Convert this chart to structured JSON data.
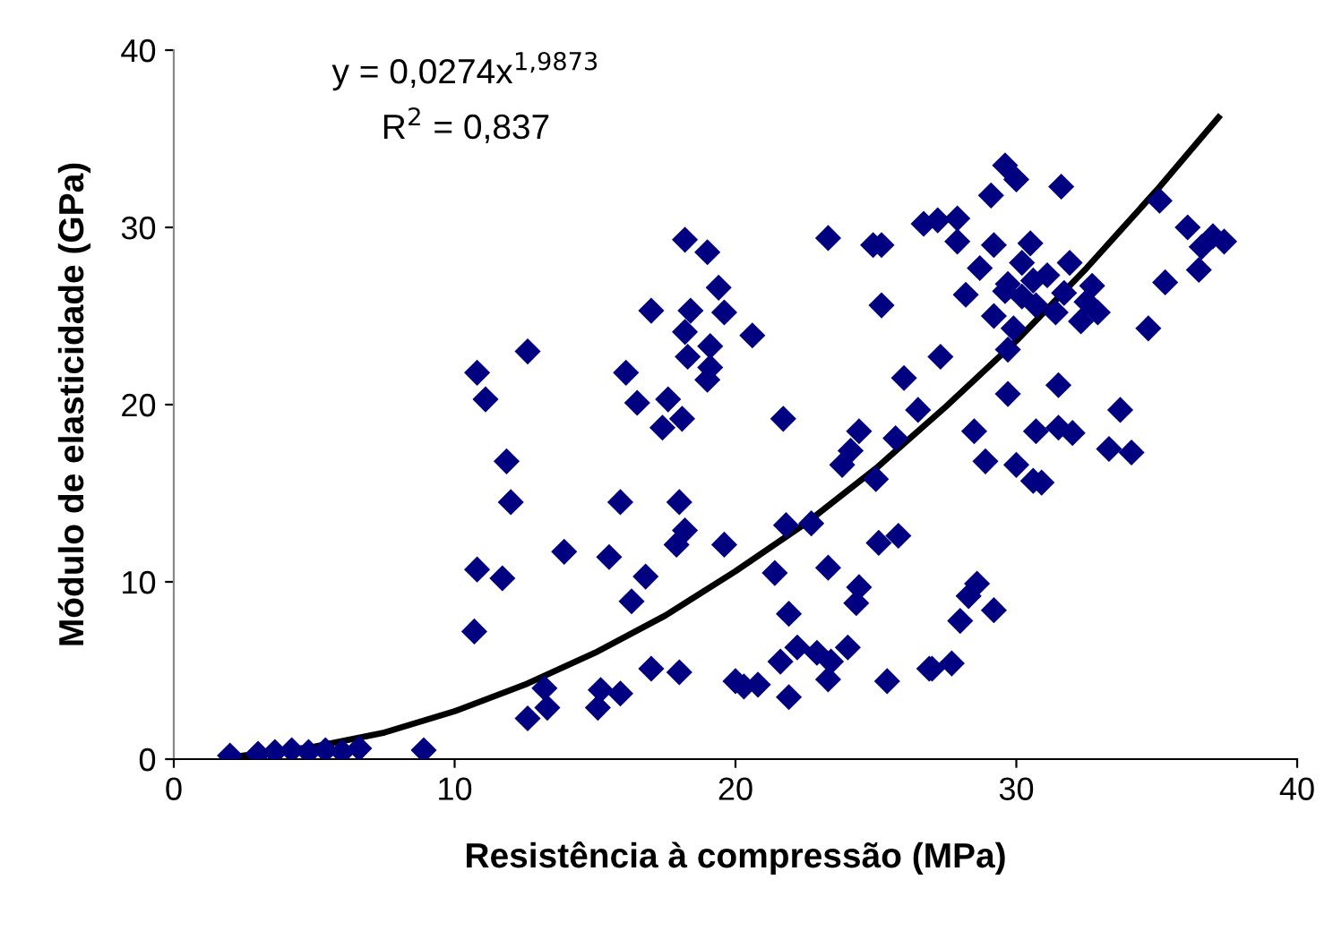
{
  "chart_data": {
    "type": "scatter",
    "xlabel": "Resistência à compressão (MPa)",
    "ylabel": "Módulo de elasticidade (GPa)",
    "annotations": [
      "y = 0,0274x$^{1,9873}$",
      "R$^{2}$ = 0,837"
    ],
    "xlim": [
      0,
      40
    ],
    "ylim": [
      0,
      40
    ],
    "xticks": [
      0,
      10,
      20,
      30,
      40
    ],
    "yticks": [
      0,
      10,
      20,
      30,
      40
    ],
    "grid": false,
    "legend": false,
    "series": [
      {
        "color": "#000080",
        "marker": "diamond",
        "x": [
          2,
          3,
          3.6,
          4.2,
          4.8,
          5.4,
          6,
          6.6,
          8.9,
          10.7,
          10.8,
          10.8,
          11.1,
          11.7,
          11.85,
          12.0,
          12.6,
          12.6,
          13.2,
          13.3,
          13.9,
          15.1,
          15.2,
          15.5,
          15.9,
          15.9,
          16.1,
          16.3,
          16.5,
          16.8,
          17.0,
          17.0,
          17.4,
          17.6,
          17.9,
          18.0,
          18.0,
          18.1,
          18.2,
          18.2,
          18.2,
          18.3,
          18.4,
          19.0,
          19.0,
          19.1,
          19.1,
          19.4,
          19.6,
          19.6,
          20.0,
          20.3,
          20.6,
          20.8,
          21.4,
          21.6,
          21.7,
          21.8,
          21.9,
          21.9,
          22.2,
          22.7,
          22.9,
          23.3,
          23.3,
          23.3,
          23.4,
          23.8,
          24.0,
          24.1,
          24.3,
          24.4,
          24.4,
          24.9,
          25.0,
          25.1,
          25.2,
          25.2,
          25.4,
          25.7,
          25.8,
          26.0,
          26.5,
          26.7,
          26.9,
          27.0,
          27.2,
          27.3,
          27.7,
          27.9,
          27.9,
          28.0,
          28.2,
          28.3,
          28.5,
          28.6,
          28.7,
          28.9,
          29.1,
          29.2,
          29.2,
          29.2,
          29.6,
          29.6,
          29.7,
          29.7,
          29.7,
          29.9,
          30.0,
          30.0,
          30.2,
          30.2,
          30.5,
          30.6,
          30.6,
          30.7,
          30.7,
          30.9,
          31.1,
          31.4,
          31.5,
          31.5,
          31.6,
          31.7,
          31.9,
          32.0,
          32.3,
          32.5,
          32.7,
          32.9,
          33.3,
          33.7,
          34.1,
          34.7,
          35.1,
          35.3,
          36.1,
          36.5,
          36.6,
          37.0,
          37.4
        ],
        "values": [
          0.2,
          0.3,
          0.4,
          0.5,
          0.4,
          0.5,
          0.4,
          0.6,
          0.5,
          7.2,
          10.7,
          21.8,
          20.3,
          10.2,
          16.8,
          14.5,
          23.0,
          2.3,
          4.0,
          2.9,
          11.7,
          2.9,
          3.9,
          11.4,
          14.5,
          3.7,
          21.8,
          8.9,
          20.1,
          10.3,
          5.1,
          25.3,
          18.7,
          20.3,
          12.1,
          14.5,
          4.9,
          19.2,
          24.1,
          12.9,
          29.3,
          22.7,
          25.3,
          28.6,
          21.4,
          23.3,
          22.1,
          26.6,
          12.1,
          25.2,
          4.4,
          4.1,
          23.9,
          4.2,
          10.5,
          5.5,
          19.2,
          13.2,
          3.5,
          8.2,
          6.3,
          13.3,
          6.0,
          10.8,
          4.5,
          29.4,
          5.5,
          16.6,
          6.3,
          17.4,
          8.8,
          9.7,
          18.5,
          29.0,
          15.8,
          12.2,
          29.0,
          25.6,
          4.4,
          18.1,
          12.6,
          21.5,
          19.7,
          30.2,
          5.1,
          5.1,
          30.4,
          22.7,
          5.4,
          30.5,
          29.2,
          7.8,
          26.2,
          9.2,
          18.5,
          9.9,
          27.7,
          16.8,
          31.8,
          29.0,
          25.0,
          8.4,
          33.5,
          26.4,
          26.8,
          23.1,
          20.6,
          24.3,
          32.7,
          16.6,
          28.0,
          26.1,
          29.1,
          27.0,
          15.7,
          25.6,
          18.5,
          15.6,
          27.3,
          25.2,
          21.1,
          18.7,
          32.3,
          26.3,
          28.0,
          18.4,
          24.7,
          25.8,
          26.7,
          25.2,
          17.5,
          19.7,
          17.3,
          24.3,
          31.5,
          26.9,
          30.0,
          27.6,
          28.9,
          29.5,
          29.2
        ]
      },
      {
        "type": "line",
        "color": "#000000",
        "marker": "none",
        "line_style": "solid",
        "x": [
          2,
          5,
          7.5,
          10,
          12.5,
          15,
          17.5,
          20,
          22.5,
          25,
          27.5,
          30,
          32.5,
          35,
          37.2
        ],
        "values": [
          0.1,
          0.7,
          1.5,
          2.7,
          4.2,
          6.0,
          8.1,
          10.6,
          13.3,
          16.4,
          19.9,
          23.6,
          27.7,
          32.1,
          36.2
        ]
      }
    ]
  }
}
